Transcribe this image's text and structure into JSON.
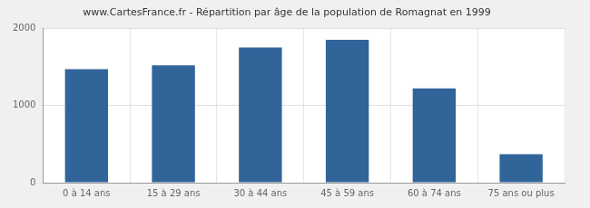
{
  "chart_data": {
    "type": "bar",
    "title": "www.CartesFrance.fr - Répartition par âge de la population de Romagnat en 1999",
    "categories": [
      "0 à 14 ans",
      "15 à 29 ans",
      "30 à 44 ans",
      "45 à 59 ans",
      "60 à 74 ans",
      "75 ans ou plus"
    ],
    "values": [
      1470,
      1520,
      1750,
      1850,
      1220,
      370
    ],
    "color": "#31659a",
    "ylim": [
      0,
      2000
    ],
    "yticks": [
      0,
      1000,
      2000
    ],
    "grid": true
  }
}
